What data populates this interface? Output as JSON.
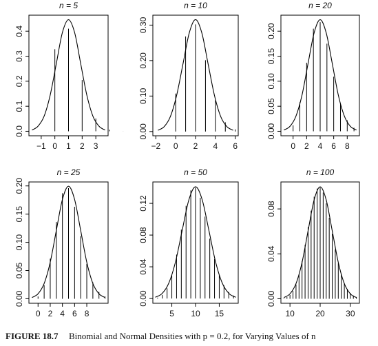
{
  "chart_data": [
    {
      "type": "stem",
      "title": "n = 5",
      "x": [
        0,
        1,
        2,
        3,
        4,
        5
      ],
      "values": [
        0.328,
        0.41,
        0.205,
        0.051,
        0.006,
        0.0003
      ],
      "curve": {
        "x": [
          -1.68,
          -1.24,
          -0.79,
          -0.34,
          0.11,
          0.55,
          1,
          1.45,
          1.89,
          2.34,
          2.79,
          3.24,
          3.68
        ],
        "values": [
          0.005,
          0.02,
          0.06,
          0.145,
          0.271,
          0.394,
          0.446,
          0.394,
          0.271,
          0.145,
          0.06,
          0.02,
          0.005
        ]
      },
      "xlim": [
        -1.9,
        3.9
      ],
      "xticks": [
        {
          "value": -1,
          "label": "−1"
        },
        0,
        1,
        2,
        3
      ],
      "ylim": [
        -0.018,
        0.464
      ],
      "yticks": [
        {
          "value": 0,
          "label": "0.0"
        },
        0.1,
        0.2,
        0.3,
        0.4
      ],
      "color": "#000000"
    },
    {
      "type": "stem",
      "title": "n = 10",
      "x": [
        0,
        1,
        2,
        3,
        4,
        5,
        6
      ],
      "values": [
        0.107,
        0.268,
        0.302,
        0.201,
        0.088,
        0.026,
        0.006
      ],
      "curve": {
        "x": [
          -1.79,
          -1.16,
          -0.53,
          0.1,
          0.74,
          1.37,
          2,
          2.63,
          3.26,
          3.9,
          4.53,
          5.16,
          5.79
        ],
        "values": [
          0.0035,
          0.0138,
          0.0426,
          0.1024,
          0.1913,
          0.2783,
          0.3154,
          0.2783,
          0.1913,
          0.1024,
          0.0426,
          0.0138,
          0.0035
        ]
      },
      "xlim": [
        -2.3,
        6.3
      ],
      "xticks": [
        {
          "value": -2,
          "label": "−2"
        },
        0,
        2,
        4,
        6
      ],
      "ylim": [
        -0.012,
        0.328
      ],
      "yticks": [
        {
          "value": 0,
          "label": "0.00"
        },
        {
          "value": 0.1,
          "label": "0.10"
        },
        {
          "value": 0.2,
          "label": "0.20"
        },
        {
          "value": 0.3,
          "label": "0.30"
        }
      ],
      "color": "#000000"
    },
    {
      "type": "stem",
      "title": "n = 20",
      "x": [
        0,
        1,
        2,
        3,
        4,
        5,
        6,
        7,
        8,
        9
      ],
      "values": [
        0.012,
        0.058,
        0.137,
        0.205,
        0.218,
        0.175,
        0.109,
        0.055,
        0.022,
        0.007
      ],
      "curve": {
        "x": [
          -1.37,
          -0.47,
          0.42,
          1.32,
          2.21,
          3.11,
          4,
          4.89,
          5.79,
          6.68,
          7.58,
          8.47,
          9.37
        ],
        "values": [
          0.0025,
          0.0098,
          0.0302,
          0.0724,
          0.1353,
          0.1968,
          0.223,
          0.1968,
          0.1353,
          0.0724,
          0.0302,
          0.0098,
          0.0025
        ]
      },
      "xlim": [
        -1.8,
        9.8
      ],
      "xticks": [
        0,
        2,
        4,
        6,
        8
      ],
      "ylim": [
        -0.009,
        0.232
      ],
      "yticks": [
        {
          "value": 0,
          "label": "0.00"
        },
        0.05,
        {
          "value": 0.1,
          "label": "0.10"
        },
        0.15,
        {
          "value": 0.2,
          "label": "0.20"
        }
      ],
      "color": "#000000"
    },
    {
      "type": "stem",
      "title": "n = 25",
      "x": [
        0,
        1,
        2,
        3,
        4,
        5,
        6,
        7,
        8,
        9,
        10,
        11
      ],
      "values": [
        0.004,
        0.024,
        0.071,
        0.136,
        0.187,
        0.196,
        0.163,
        0.111,
        0.062,
        0.029,
        0.012,
        0.004
      ],
      "curve": {
        "x": [
          -1,
          0,
          1,
          2,
          3,
          4,
          5,
          6,
          7,
          8,
          9,
          10,
          11
        ],
        "values": [
          0.0022,
          0.0088,
          0.027,
          0.0648,
          0.121,
          0.176,
          0.1995,
          0.176,
          0.121,
          0.0648,
          0.027,
          0.0088,
          0.0022
        ]
      },
      "xlim": [
        -1.5,
        11.5
      ],
      "xticks": [
        0,
        2,
        4,
        6,
        8
      ],
      "ylim": [
        -0.008,
        0.207
      ],
      "yticks": [
        {
          "value": 0,
          "label": "0.00"
        },
        0.05,
        {
          "value": 0.1,
          "label": "0.10"
        },
        0.15,
        {
          "value": 0.2,
          "label": "0.20"
        }
      ],
      "color": "#000000"
    },
    {
      "type": "stem",
      "title": "n = 50",
      "x": [
        1,
        2,
        3,
        4,
        5,
        6,
        7,
        8,
        9,
        10,
        11,
        12,
        13,
        14,
        15,
        16,
        17,
        18,
        19
      ],
      "values": [
        0.0002,
        0.0011,
        0.0044,
        0.0128,
        0.0295,
        0.0554,
        0.087,
        0.1169,
        0.1364,
        0.1398,
        0.1271,
        0.1033,
        0.0755,
        0.0499,
        0.0299,
        0.0164,
        0.0082,
        0.0037,
        0.0016
      ],
      "curve": {
        "x": [
          1.51,
          2.93,
          4.34,
          5.76,
          7.17,
          8.59,
          10,
          11.41,
          12.83,
          14.24,
          15.66,
          17.07,
          18.49
        ],
        "values": [
          0.0016,
          0.0062,
          0.0191,
          0.0458,
          0.0855,
          0.1244,
          0.141,
          0.1244,
          0.0855,
          0.0458,
          0.0191,
          0.0062,
          0.0016
        ]
      },
      "xlim": [
        1,
        19
      ],
      "xticks": [
        5,
        10,
        15
      ],
      "ylim": [
        -0.006,
        0.147
      ],
      "yticks": [
        {
          "value": 0,
          "label": "0.00"
        },
        0.04,
        0.08,
        0.12
      ],
      "color": "#000000"
    },
    {
      "type": "stem",
      "title": "n = 100",
      "x": [
        8,
        9,
        10,
        11,
        12,
        13,
        14,
        15,
        16,
        17,
        18,
        19,
        20,
        21,
        22,
        23,
        24,
        25,
        26,
        27,
        28,
        29,
        30,
        31,
        32,
        33
      ],
      "values": [
        0.0006,
        0.0015,
        0.0034,
        0.0069,
        0.0128,
        0.0217,
        0.0335,
        0.0481,
        0.0638,
        0.0784,
        0.0909,
        0.0981,
        0.0993,
        0.0946,
        0.0849,
        0.072,
        0.0577,
        0.0439,
        0.0316,
        0.0217,
        0.0141,
        0.0088,
        0.0052,
        0.0029,
        0.0016,
        0.0008
      ],
      "curve": {
        "x": [
          8,
          10,
          12,
          14,
          16,
          18,
          20,
          22,
          24,
          26,
          28,
          30,
          32
        ],
        "values": [
          0.0011,
          0.0044,
          0.0135,
          0.0324,
          0.0605,
          0.088,
          0.0997,
          0.088,
          0.0605,
          0.0324,
          0.0135,
          0.0044,
          0.0011
        ]
      },
      "xlim": [
        7,
        33
      ],
      "xticks": [
        10,
        20,
        30
      ],
      "ylim": [
        -0.004,
        0.104
      ],
      "yticks": [
        {
          "value": 0,
          "label": "0.00"
        },
        0.04,
        0.08
      ],
      "color": "#000000"
    }
  ],
  "caption": {
    "label": "FIGURE 18.7",
    "text": "Binomial and Normal Densities with p = 0.2, for Varying Values of n"
  }
}
